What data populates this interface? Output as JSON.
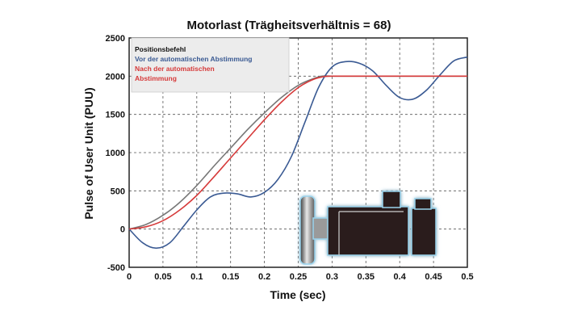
{
  "chart_data": {
    "type": "line",
    "title": "Motorlast (Trägheitsverhältnis = 68)",
    "xlabel": "Time (sec)",
    "ylabel": "Pulse of User Unit (PUU)",
    "xlim": [
      0,
      0.5
    ],
    "ylim": [
      -500,
      2500
    ],
    "x_ticks": [
      "0",
      "0.05",
      "0.1",
      "0.15",
      "0.2",
      "0.25",
      "0.3",
      "0.35",
      "0.4",
      "0.45",
      "0.5"
    ],
    "y_ticks": [
      "2500",
      "2000",
      "1500",
      "1000",
      "500",
      "0",
      "-500"
    ],
    "grid": true,
    "legend_position": "top-left",
    "colors": {
      "command": "#777777",
      "before": "#3a5a93",
      "after": "#d63a3a",
      "legend_bg": "#ececec"
    },
    "series": [
      {
        "name": "Positionsbefehl",
        "color": "#777777",
        "x": [
          0,
          0.025,
          0.05,
          0.075,
          0.1,
          0.125,
          0.15,
          0.175,
          0.2,
          0.225,
          0.25,
          0.27,
          0.285,
          0.3,
          0.35,
          0.4,
          0.45,
          0.5
        ],
        "y": [
          0,
          60,
          180,
          350,
          570,
          820,
          1060,
          1300,
          1520,
          1720,
          1880,
          1960,
          2000,
          2000,
          2000,
          2000,
          2000,
          2000
        ]
      },
      {
        "name": "Vor der automatischen Abstimmung",
        "color": "#3a5a93",
        "x": [
          0,
          0.02,
          0.04,
          0.06,
          0.08,
          0.1,
          0.12,
          0.14,
          0.16,
          0.18,
          0.2,
          0.22,
          0.24,
          0.26,
          0.28,
          0.3,
          0.32,
          0.34,
          0.36,
          0.38,
          0.4,
          0.42,
          0.44,
          0.46,
          0.48,
          0.5
        ],
        "y": [
          0,
          -180,
          -250,
          -180,
          30,
          250,
          420,
          470,
          460,
          420,
          480,
          650,
          950,
          1400,
          1850,
          2120,
          2190,
          2170,
          2070,
          1880,
          1720,
          1700,
          1820,
          2020,
          2200,
          2250
        ]
      },
      {
        "name": "Nach der automatischen Abstimmung",
        "color": "#d63a3a",
        "x": [
          0,
          0.025,
          0.05,
          0.075,
          0.1,
          0.125,
          0.15,
          0.175,
          0.2,
          0.225,
          0.25,
          0.27,
          0.285,
          0.3,
          0.35,
          0.4,
          0.45,
          0.5
        ],
        "y": [
          0,
          30,
          110,
          250,
          440,
          680,
          930,
          1180,
          1430,
          1660,
          1850,
          1950,
          1990,
          2000,
          2000,
          2000,
          2000,
          2000
        ]
      }
    ]
  }
}
